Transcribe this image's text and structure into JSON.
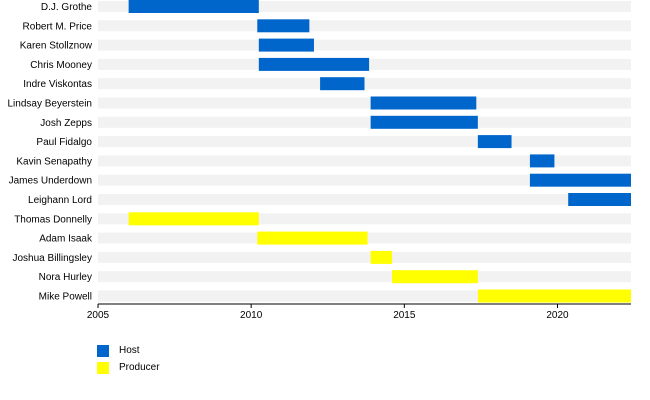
{
  "chart_data": {
    "type": "bar",
    "orientation": "horizontal-timeline",
    "x_ticks": [
      2005,
      2010,
      2015,
      2020
    ],
    "xlim": [
      2005,
      2022.4
    ],
    "roles": [
      {
        "name": "Host",
        "color": "#0066cc"
      },
      {
        "name": "Producer",
        "color": "#ffff00"
      }
    ],
    "rows": [
      {
        "label": "D.J. Grothe",
        "bars": [
          {
            "start": 2006.0,
            "end": 2010.25,
            "role": "Host"
          }
        ]
      },
      {
        "label": "Robert M. Price",
        "bars": [
          {
            "start": 2010.2,
            "end": 2011.9,
            "role": "Host"
          }
        ]
      },
      {
        "label": "Karen Stollznow",
        "bars": [
          {
            "start": 2010.25,
            "end": 2012.05,
            "role": "Host"
          }
        ]
      },
      {
        "label": "Chris Mooney",
        "bars": [
          {
            "start": 2010.25,
            "end": 2013.85,
            "role": "Host"
          }
        ]
      },
      {
        "label": "Indre Viskontas",
        "bars": [
          {
            "start": 2012.25,
            "end": 2013.7,
            "role": "Host"
          }
        ]
      },
      {
        "label": "Lindsay Beyerstein",
        "bars": [
          {
            "start": 2013.9,
            "end": 2017.35,
            "role": "Host"
          }
        ]
      },
      {
        "label": "Josh Zepps",
        "bars": [
          {
            "start": 2013.9,
            "end": 2017.4,
            "role": "Host"
          }
        ]
      },
      {
        "label": "Paul Fidalgo",
        "bars": [
          {
            "start": 2017.4,
            "end": 2018.5,
            "role": "Host"
          }
        ]
      },
      {
        "label": "Kavin Senapathy",
        "bars": [
          {
            "start": 2019.1,
            "end": 2019.9,
            "role": "Host"
          }
        ]
      },
      {
        "label": "James Underdown",
        "bars": [
          {
            "start": 2019.1,
            "end": 2022.4,
            "role": "Host"
          }
        ]
      },
      {
        "label": "Leighann Lord",
        "bars": [
          {
            "start": 2020.35,
            "end": 2022.4,
            "role": "Host"
          }
        ]
      },
      {
        "label": "Thomas Donnelly",
        "bars": [
          {
            "start": 2006.0,
            "end": 2010.25,
            "role": "Producer"
          }
        ]
      },
      {
        "label": "Adam Isaak",
        "bars": [
          {
            "start": 2010.2,
            "end": 2013.8,
            "role": "Producer"
          }
        ]
      },
      {
        "label": "Joshua Billingsley",
        "bars": [
          {
            "start": 2013.9,
            "end": 2014.6,
            "role": "Producer"
          }
        ]
      },
      {
        "label": "Nora Hurley",
        "bars": [
          {
            "start": 2014.6,
            "end": 2017.4,
            "role": "Producer"
          }
        ]
      },
      {
        "label": "Mike Powell",
        "bars": [
          {
            "start": 2017.4,
            "end": 2022.4,
            "role": "Producer"
          }
        ]
      }
    ],
    "row_stripe_color": "#f2f2f2",
    "legend_position": "bottom-left",
    "grid": false
  }
}
